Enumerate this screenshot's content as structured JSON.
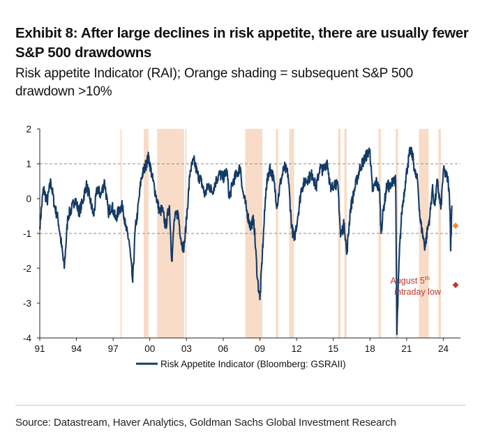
{
  "header": {
    "title": "Exhibit 8: After large declines in risk appetite, there are usually fewer S&P 500 drawdowns",
    "subtitle": "Risk appetite Indicator (RAI); Orange shading = subsequent S&P 500 drawdown >10%"
  },
  "source": "Source: Datastream, Haver Analytics, Goldman Sachs Global Investment Research",
  "chart_data": {
    "type": "line",
    "title": "",
    "xlabel": "",
    "ylabel": "",
    "xlim": [
      1991,
      2025.4
    ],
    "ylim": [
      -4,
      2
    ],
    "y_ticks": [
      "2",
      "1",
      "0",
      "-1",
      "-2",
      "-3",
      "-4"
    ],
    "x_ticks": [
      "91",
      "94",
      "97",
      "00",
      "03",
      "06",
      "09",
      "12",
      "15",
      "18",
      "21",
      "24"
    ],
    "reference_lines": [
      1,
      -1
    ],
    "legend": {
      "position": "bottom-center",
      "label": "Risk Appetite Indicator (Bloomberg: GSRAII)"
    },
    "colors": {
      "line": "#143a66",
      "shading": "#f8dcc7",
      "current_marker": "#f08a32",
      "annotation": "#c0392b"
    },
    "shaded_periods": [
      [
        1997.6,
        1997.7
      ],
      [
        1999.5,
        1999.9
      ],
      [
        2000.6,
        2002.8
      ],
      [
        2002.9,
        2003.0
      ],
      [
        2007.8,
        2009.2
      ],
      [
        2010.3,
        2010.5
      ],
      [
        2011.4,
        2011.8
      ],
      [
        2015.4,
        2015.6
      ],
      [
        2015.9,
        2016.1
      ],
      [
        2018.7,
        2018.9
      ],
      [
        2020.1,
        2020.3
      ],
      [
        2022.0,
        2022.8
      ],
      [
        2023.6,
        2023.8
      ]
    ],
    "series": [
      {
        "values": [
          [
            1991.0,
            -0.8
          ],
          [
            1991.3,
            0.3
          ],
          [
            1991.6,
            -0.1
          ],
          [
            1991.9,
            0.5
          ],
          [
            1992.2,
            -0.2
          ],
          [
            1992.5,
            -0.6
          ],
          [
            1992.8,
            -1.4
          ],
          [
            1993.0,
            -2.0
          ],
          [
            1993.3,
            -0.5
          ],
          [
            1993.6,
            -0.3
          ],
          [
            1993.9,
            0.0
          ],
          [
            1994.2,
            -0.4
          ],
          [
            1994.5,
            -0.1
          ],
          [
            1994.8,
            0.4
          ],
          [
            1995.1,
            0.0
          ],
          [
            1995.4,
            -0.5
          ],
          [
            1995.7,
            0.3
          ],
          [
            1996.0,
            0.1
          ],
          [
            1996.3,
            0.5
          ],
          [
            1996.6,
            -0.4
          ],
          [
            1996.9,
            -0.2
          ],
          [
            1997.2,
            -0.6
          ],
          [
            1997.5,
            -0.3
          ],
          [
            1997.8,
            -0.2
          ],
          [
            1998.0,
            -0.8
          ],
          [
            1998.3,
            -1.2
          ],
          [
            1998.6,
            -2.4
          ],
          [
            1998.8,
            -0.9
          ],
          [
            1999.0,
            -0.4
          ],
          [
            1999.3,
            0.6
          ],
          [
            1999.6,
            0.9
          ],
          [
            1999.9,
            1.2
          ],
          [
            2000.2,
            0.6
          ],
          [
            2000.5,
            0.1
          ],
          [
            2000.8,
            -0.4
          ],
          [
            2001.0,
            -0.3
          ],
          [
            2001.3,
            -0.8
          ],
          [
            2001.6,
            -0.2
          ],
          [
            2001.8,
            -1.8
          ],
          [
            2002.0,
            -0.6
          ],
          [
            2002.3,
            -0.4
          ],
          [
            2002.6,
            -1.3
          ],
          [
            2002.8,
            -1.4
          ],
          [
            2003.0,
            -0.6
          ],
          [
            2003.3,
            0.8
          ],
          [
            2003.6,
            1.1
          ],
          [
            2003.9,
            0.7
          ],
          [
            2004.2,
            0.5
          ],
          [
            2004.5,
            0.1
          ],
          [
            2004.8,
            0.4
          ],
          [
            2005.1,
            0.2
          ],
          [
            2005.4,
            0.5
          ],
          [
            2005.7,
            0.7
          ],
          [
            2006.0,
            0.6
          ],
          [
            2006.3,
            0.8
          ],
          [
            2006.5,
            0.0
          ],
          [
            2006.8,
            0.5
          ],
          [
            2007.1,
            0.7
          ],
          [
            2007.4,
            0.9
          ],
          [
            2007.6,
            0.2
          ],
          [
            2007.9,
            -0.3
          ],
          [
            2008.2,
            -0.8
          ],
          [
            2008.5,
            -0.6
          ],
          [
            2008.8,
            -2.3
          ],
          [
            2009.0,
            -2.9
          ],
          [
            2009.2,
            -1.6
          ],
          [
            2009.5,
            0.3
          ],
          [
            2009.8,
            0.9
          ],
          [
            2010.1,
            0.6
          ],
          [
            2010.4,
            -0.2
          ],
          [
            2010.7,
            0.5
          ],
          [
            2011.0,
            0.9
          ],
          [
            2011.3,
            0.7
          ],
          [
            2011.6,
            -0.8
          ],
          [
            2011.8,
            -1.2
          ],
          [
            2012.1,
            -0.5
          ],
          [
            2012.4,
            0.3
          ],
          [
            2012.7,
            0.5
          ],
          [
            2013.0,
            0.6
          ],
          [
            2013.3,
            0.7
          ],
          [
            2013.6,
            0.3
          ],
          [
            2013.9,
            0.9
          ],
          [
            2014.2,
            0.8
          ],
          [
            2014.5,
            1.1
          ],
          [
            2014.8,
            0.2
          ],
          [
            2015.1,
            0.5
          ],
          [
            2015.4,
            0.3
          ],
          [
            2015.6,
            -1.1
          ],
          [
            2015.9,
            -0.7
          ],
          [
            2016.1,
            -1.6
          ],
          [
            2016.4,
            -0.3
          ],
          [
            2016.7,
            0.2
          ],
          [
            2016.9,
            0.5
          ],
          [
            2017.2,
            0.9
          ],
          [
            2017.5,
            1.1
          ],
          [
            2017.8,
            1.3
          ],
          [
            2018.0,
            1.4
          ],
          [
            2018.2,
            0.2
          ],
          [
            2018.5,
            0.5
          ],
          [
            2018.8,
            0.2
          ],
          [
            2018.9,
            -1.0
          ],
          [
            2019.1,
            -0.3
          ],
          [
            2019.4,
            0.4
          ],
          [
            2019.7,
            0.3
          ],
          [
            2019.9,
            0.6
          ],
          [
            2020.1,
            0.5
          ],
          [
            2020.2,
            -3.9
          ],
          [
            2020.4,
            -1.6
          ],
          [
            2020.6,
            -0.4
          ],
          [
            2020.9,
            0.5
          ],
          [
            2021.1,
            1.0
          ],
          [
            2021.3,
            1.4
          ],
          [
            2021.5,
            1.2
          ],
          [
            2021.7,
            0.7
          ],
          [
            2021.9,
            0.5
          ],
          [
            2022.1,
            -0.6
          ],
          [
            2022.3,
            -1.0
          ],
          [
            2022.5,
            -1.4
          ],
          [
            2022.7,
            -0.9
          ],
          [
            2022.9,
            -0.5
          ],
          [
            2023.1,
            0.3
          ],
          [
            2023.3,
            -0.2
          ],
          [
            2023.5,
            0.5
          ],
          [
            2023.8,
            -0.3
          ],
          [
            2024.0,
            0.8
          ],
          [
            2024.2,
            0.7
          ],
          [
            2024.4,
            0.5
          ],
          [
            2024.55,
            -0.3
          ],
          [
            2024.6,
            -1.5
          ],
          [
            2024.7,
            -0.2
          ]
        ]
      }
    ],
    "markers": [
      {
        "x": 2025.0,
        "y": -0.78,
        "color": "#f08a32"
      },
      {
        "x": 2025.0,
        "y": -2.48,
        "color": "#c0392b"
      }
    ],
    "annotation": {
      "line1": "August 5",
      "sup": "th",
      "line2": "intraday low",
      "x": 2023.0,
      "y": -2.48
    }
  }
}
